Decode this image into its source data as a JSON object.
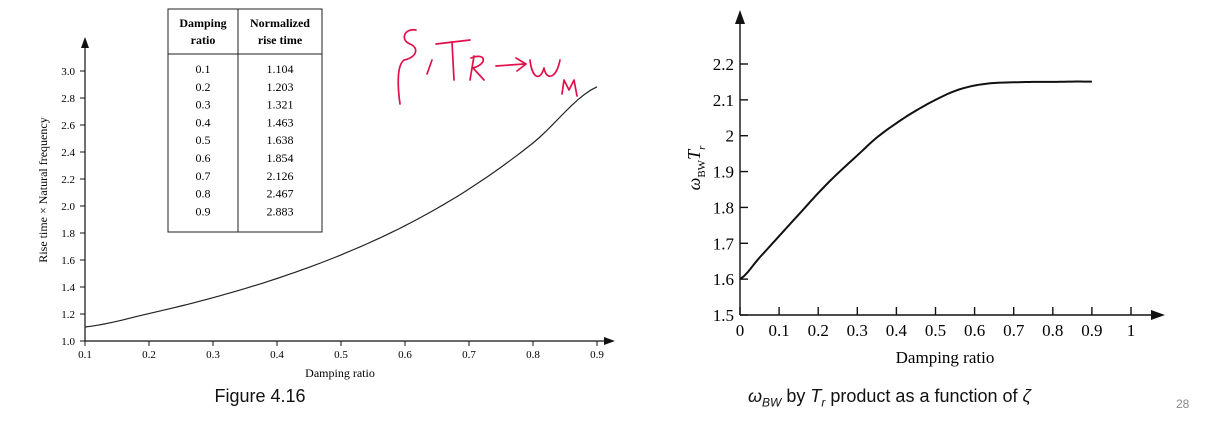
{
  "slide": {
    "number": "28"
  },
  "chart_data": [
    {
      "type": "line",
      "title": "",
      "caption": "Figure 4.16",
      "xlabel": "Damping ratio",
      "ylabel": "Rise time × Natural frequency",
      "xlim": [
        0.1,
        0.9
      ],
      "ylim": [
        1.0,
        3.0
      ],
      "xticks": [
        "0.1",
        "0.2",
        "0.3",
        "0.4",
        "0.5",
        "0.6",
        "0.7",
        "0.8",
        "0.9"
      ],
      "yticks": [
        "1.0",
        "1.2",
        "1.4",
        "1.6",
        "1.8",
        "2.0",
        "2.2",
        "2.4",
        "2.6",
        "2.8",
        "3.0"
      ],
      "grid": false,
      "series": [
        {
          "x": [
            0.1,
            0.2,
            0.3,
            0.4,
            0.5,
            0.6,
            0.7,
            0.8,
            0.9
          ],
          "y": [
            1.104,
            1.203,
            1.321,
            1.463,
            1.638,
            1.854,
            2.126,
            2.467,
            2.883
          ]
        }
      ],
      "table": {
        "headers": [
          "Damping ratio",
          "Normalized rise time"
        ],
        "header_lines": [
          [
            "Damping",
            "ratio"
          ],
          [
            "Normalized",
            "rise time"
          ]
        ],
        "rows": [
          [
            "0.1",
            "1.104"
          ],
          [
            "0.2",
            "1.203"
          ],
          [
            "0.3",
            "1.321"
          ],
          [
            "0.4",
            "1.463"
          ],
          [
            "0.5",
            "1.638"
          ],
          [
            "0.6",
            "1.854"
          ],
          [
            "0.7",
            "2.126"
          ],
          [
            "0.8",
            "2.467"
          ],
          [
            "0.9",
            "2.883"
          ]
        ]
      },
      "annotation": {
        "text": "ζ, T_R → ω_M",
        "color": "#e0104a",
        "style": "handwritten"
      }
    },
    {
      "type": "line",
      "title": "",
      "caption": {
        "pre": "ω",
        "pre_sub": "BW",
        "mid": " by ",
        "t": "T",
        "t_sub": "r",
        "post": " product as a function of ",
        "zeta": "ζ"
      },
      "xlabel": "Damping ratio",
      "ylabel": {
        "omega": "ω",
        "sub": "BW",
        "t": "T",
        "t_sub": "r"
      },
      "xlim": [
        0,
        1
      ],
      "ylim": [
        1.5,
        2.2
      ],
      "xticks": [
        "0",
        "0.1",
        "0.2",
        "0.3",
        "0.4",
        "0.5",
        "0.6",
        "0.7",
        "0.8",
        "0.9",
        "1"
      ],
      "yticks": [
        "1.5",
        "1.6",
        "1.7",
        "1.8",
        "1.9",
        "2",
        "2.1",
        "2.2"
      ],
      "grid": false,
      "series": [
        {
          "x": [
            0,
            0.05,
            0.1,
            0.15,
            0.2,
            0.25,
            0.3,
            0.35,
            0.4,
            0.45,
            0.5,
            0.55,
            0.6,
            0.65,
            0.7,
            0.75,
            0.8,
            0.85,
            0.9
          ],
          "y": [
            1.6,
            1.66,
            1.72,
            1.78,
            1.84,
            1.895,
            1.945,
            1.995,
            2.035,
            2.07,
            2.1,
            2.125,
            2.14,
            2.147,
            2.149,
            2.15,
            2.15,
            2.151,
            2.151
          ]
        }
      ]
    }
  ]
}
